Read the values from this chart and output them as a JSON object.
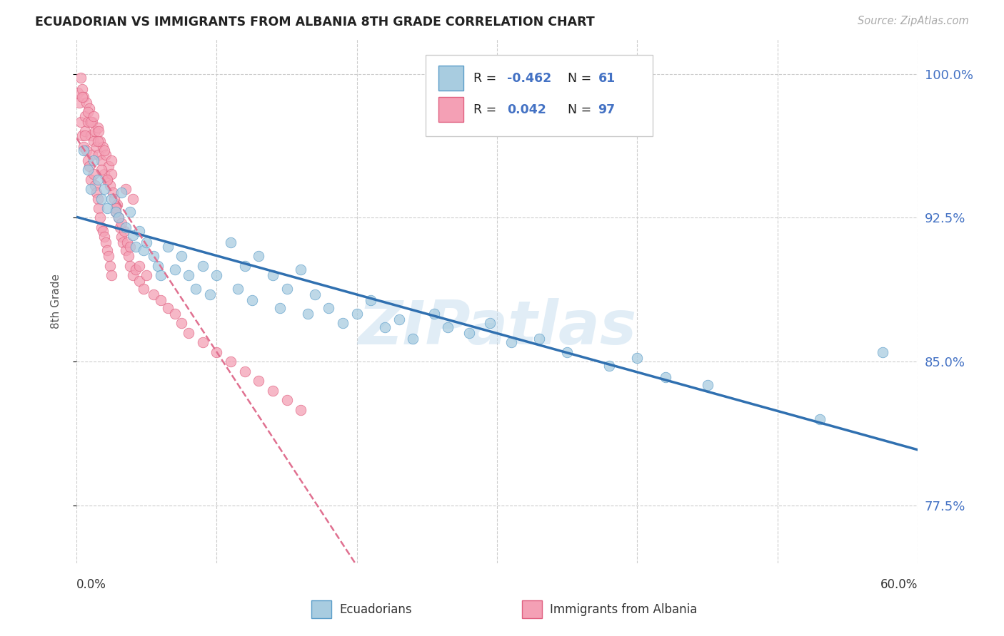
{
  "title": "ECUADORIAN VS IMMIGRANTS FROM ALBANIA 8TH GRADE CORRELATION CHART",
  "source": "Source: ZipAtlas.com",
  "ylabel": "8th Grade",
  "ylabel_right_ticks": [
    77.5,
    85.0,
    92.5,
    100.0
  ],
  "ylabel_right_labels": [
    "77.5%",
    "85.0%",
    "92.5%",
    "100.0%"
  ],
  "xmin": 0.0,
  "xmax": 0.6,
  "ymin": 0.745,
  "ymax": 1.018,
  "blue_R": -0.462,
  "blue_N": 61,
  "pink_R": 0.042,
  "pink_N": 97,
  "blue_color": "#a8cce0",
  "pink_color": "#f4a0b5",
  "blue_edge_color": "#5b9dc9",
  "pink_edge_color": "#e06080",
  "blue_line_color": "#3070b0",
  "pink_line_color": "#e07090",
  "legend_label_blue": "Ecuadorians",
  "legend_label_pink": "Immigrants from Albania",
  "watermark": "ZIPatlas",
  "watermark_color": "#c5ddef",
  "background_color": "#ffffff",
  "blue_scatter_x": [
    0.005,
    0.008,
    0.01,
    0.012,
    0.015,
    0.018,
    0.02,
    0.022,
    0.025,
    0.028,
    0.03,
    0.032,
    0.035,
    0.038,
    0.04,
    0.042,
    0.045,
    0.048,
    0.05,
    0.055,
    0.058,
    0.06,
    0.065,
    0.07,
    0.075,
    0.08,
    0.085,
    0.09,
    0.095,
    0.1,
    0.11,
    0.115,
    0.12,
    0.125,
    0.13,
    0.14,
    0.145,
    0.15,
    0.16,
    0.165,
    0.17,
    0.18,
    0.19,
    0.2,
    0.21,
    0.22,
    0.23,
    0.24,
    0.255,
    0.265,
    0.28,
    0.295,
    0.31,
    0.33,
    0.35,
    0.38,
    0.4,
    0.42,
    0.45,
    0.53,
    0.575
  ],
  "blue_scatter_y": [
    0.96,
    0.95,
    0.94,
    0.955,
    0.945,
    0.935,
    0.94,
    0.93,
    0.935,
    0.928,
    0.925,
    0.938,
    0.92,
    0.928,
    0.916,
    0.91,
    0.918,
    0.908,
    0.912,
    0.905,
    0.9,
    0.895,
    0.91,
    0.898,
    0.905,
    0.895,
    0.888,
    0.9,
    0.885,
    0.895,
    0.912,
    0.888,
    0.9,
    0.882,
    0.905,
    0.895,
    0.878,
    0.888,
    0.898,
    0.875,
    0.885,
    0.878,
    0.87,
    0.875,
    0.882,
    0.868,
    0.872,
    0.862,
    0.875,
    0.868,
    0.865,
    0.87,
    0.86,
    0.862,
    0.855,
    0.848,
    0.852,
    0.842,
    0.838,
    0.82,
    0.855
  ],
  "pink_scatter_x": [
    0.001,
    0.002,
    0.003,
    0.003,
    0.004,
    0.004,
    0.005,
    0.005,
    0.006,
    0.006,
    0.007,
    0.007,
    0.008,
    0.008,
    0.009,
    0.009,
    0.01,
    0.01,
    0.011,
    0.011,
    0.012,
    0.012,
    0.013,
    0.013,
    0.014,
    0.014,
    0.015,
    0.015,
    0.016,
    0.016,
    0.017,
    0.017,
    0.018,
    0.018,
    0.019,
    0.019,
    0.02,
    0.02,
    0.021,
    0.021,
    0.022,
    0.022,
    0.023,
    0.023,
    0.024,
    0.024,
    0.025,
    0.025,
    0.026,
    0.027,
    0.028,
    0.029,
    0.03,
    0.031,
    0.032,
    0.033,
    0.034,
    0.035,
    0.036,
    0.037,
    0.038,
    0.04,
    0.042,
    0.045,
    0.048,
    0.05,
    0.055,
    0.06,
    0.065,
    0.07,
    0.075,
    0.08,
    0.09,
    0.1,
    0.11,
    0.12,
    0.13,
    0.14,
    0.15,
    0.16,
    0.035,
    0.04,
    0.025,
    0.015,
    0.01,
    0.008,
    0.006,
    0.004,
    0.018,
    0.022,
    0.028,
    0.032,
    0.038,
    0.045,
    0.012,
    0.02,
    0.016
  ],
  "pink_scatter_y": [
    0.99,
    0.985,
    0.998,
    0.975,
    0.992,
    0.968,
    0.988,
    0.962,
    0.978,
    0.97,
    0.985,
    0.96,
    0.975,
    0.955,
    0.982,
    0.952,
    0.968,
    0.945,
    0.975,
    0.958,
    0.965,
    0.948,
    0.97,
    0.942,
    0.962,
    0.938,
    0.972,
    0.935,
    0.958,
    0.93,
    0.965,
    0.925,
    0.955,
    0.92,
    0.962,
    0.918,
    0.948,
    0.915,
    0.958,
    0.912,
    0.945,
    0.908,
    0.952,
    0.905,
    0.942,
    0.9,
    0.948,
    0.895,
    0.938,
    0.935,
    0.928,
    0.932,
    0.925,
    0.92,
    0.915,
    0.912,
    0.918,
    0.908,
    0.912,
    0.905,
    0.9,
    0.895,
    0.898,
    0.892,
    0.888,
    0.895,
    0.885,
    0.882,
    0.878,
    0.875,
    0.87,
    0.865,
    0.86,
    0.855,
    0.85,
    0.845,
    0.84,
    0.835,
    0.83,
    0.825,
    0.94,
    0.935,
    0.955,
    0.965,
    0.975,
    0.98,
    0.968,
    0.988,
    0.95,
    0.945,
    0.93,
    0.922,
    0.91,
    0.9,
    0.978,
    0.96,
    0.97
  ]
}
